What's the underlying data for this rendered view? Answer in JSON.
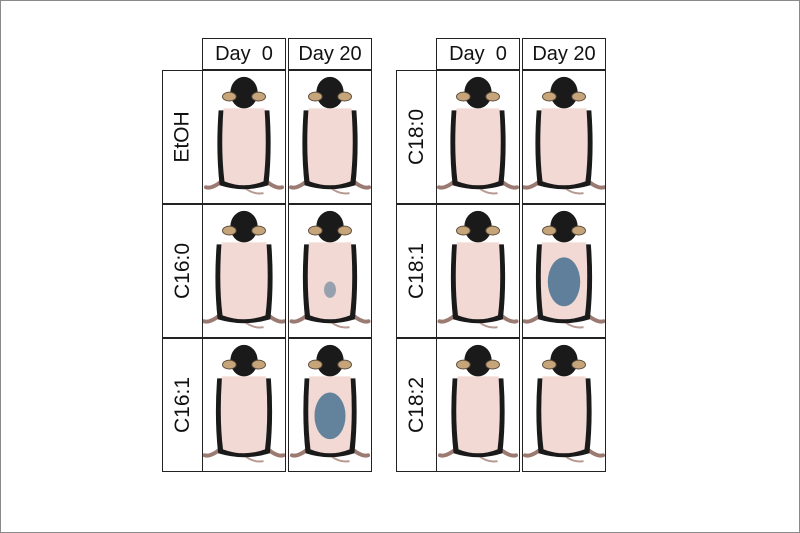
{
  "panels": [
    {
      "columns": [
        "Day  0",
        "Day 20"
      ],
      "rows": [
        {
          "label": "EtOH",
          "stain_day20": 0
        },
        {
          "label": "C16:0",
          "stain_day20": 0.15
        },
        {
          "label": "C16:1",
          "stain_day20": 0.85
        }
      ]
    },
    {
      "columns": [
        "Day  0",
        "Day 20"
      ],
      "rows": [
        {
          "label": "C18:0",
          "stain_day20": 0
        },
        {
          "label": "C18:1",
          "stain_day20": 0.9
        },
        {
          "label": "C18:2",
          "stain_day20": 0
        }
      ]
    }
  ],
  "colors": {
    "fur": "#1a1a1a",
    "skin": "#f2d9d4",
    "stain": "#3d6a8c",
    "ear": "#c7a57a"
  }
}
